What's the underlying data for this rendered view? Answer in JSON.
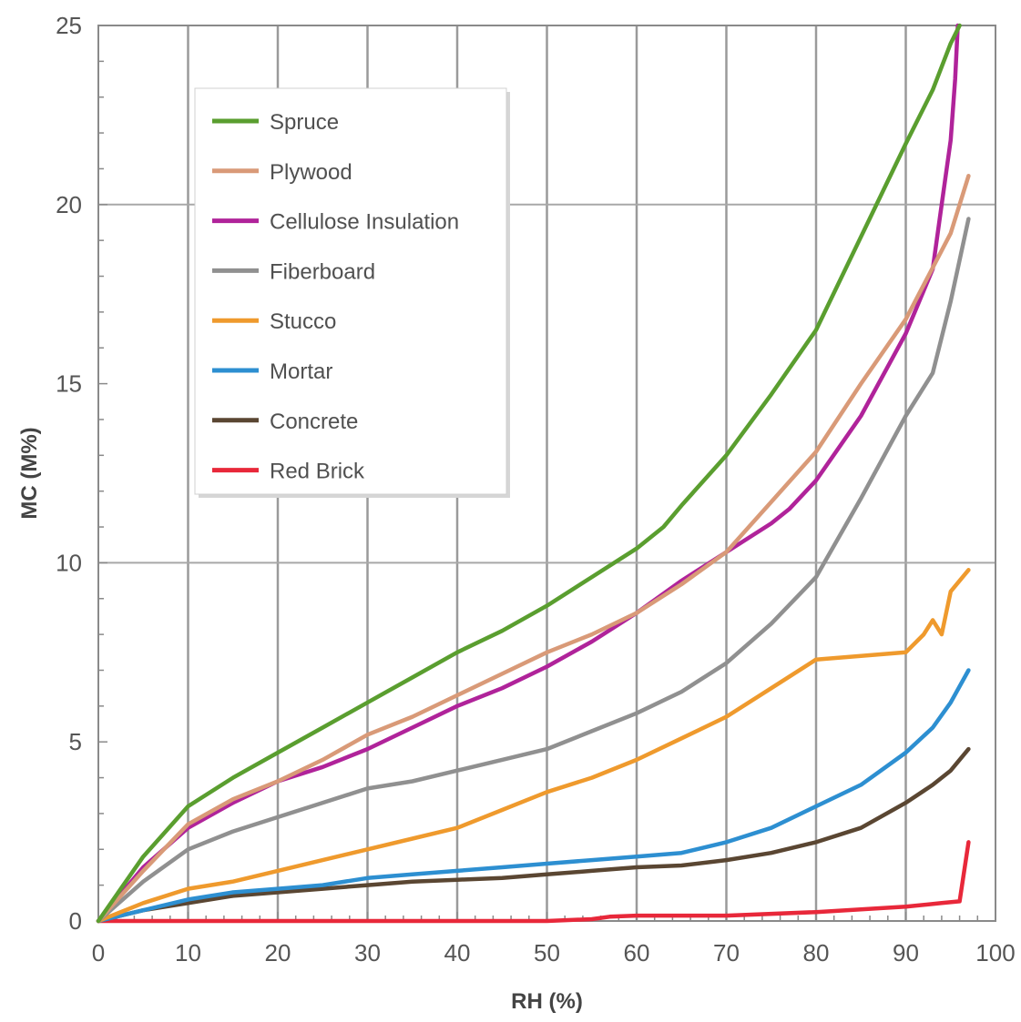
{
  "chart_data": {
    "type": "line",
    "xlabel": "RH (%)",
    "ylabel": "MC (M%)",
    "xlim": [
      0,
      100
    ],
    "ylim": [
      0,
      25
    ],
    "x_ticks": [
      0,
      10,
      20,
      30,
      40,
      50,
      60,
      70,
      80,
      90,
      100
    ],
    "y_ticks": [
      0,
      5,
      10,
      15,
      20,
      25
    ],
    "major_gridlines_y": [
      10,
      20
    ],
    "vertical_grid_x": [
      10,
      20,
      30,
      40,
      50,
      60,
      70,
      80,
      90
    ],
    "grid": true,
    "legend_position": "top-left",
    "series": [
      {
        "name": "Spruce",
        "color": "#5a9e2f",
        "points": [
          [
            0,
            0
          ],
          [
            5,
            1.8
          ],
          [
            10,
            3.2
          ],
          [
            15,
            4.0
          ],
          [
            20,
            4.7
          ],
          [
            25,
            5.4
          ],
          [
            30,
            6.1
          ],
          [
            35,
            6.8
          ],
          [
            40,
            7.5
          ],
          [
            45,
            8.1
          ],
          [
            50,
            8.8
          ],
          [
            55,
            9.6
          ],
          [
            60,
            10.4
          ],
          [
            63,
            11.0
          ],
          [
            65,
            11.6
          ],
          [
            70,
            13.0
          ],
          [
            75,
            14.7
          ],
          [
            80,
            16.5
          ],
          [
            85,
            19.1
          ],
          [
            90,
            21.7
          ],
          [
            93,
            23.2
          ],
          [
            95,
            24.5
          ],
          [
            96,
            25.0
          ]
        ]
      },
      {
        "name": "Plywood",
        "color": "#d99a78",
        "points": [
          [
            0,
            0
          ],
          [
            5,
            1.4
          ],
          [
            10,
            2.7
          ],
          [
            15,
            3.4
          ],
          [
            20,
            3.9
          ],
          [
            25,
            4.5
          ],
          [
            30,
            5.2
          ],
          [
            35,
            5.7
          ],
          [
            40,
            6.3
          ],
          [
            45,
            6.9
          ],
          [
            50,
            7.5
          ],
          [
            55,
            8.0
          ],
          [
            60,
            8.6
          ],
          [
            65,
            9.4
          ],
          [
            70,
            10.3
          ],
          [
            75,
            11.7
          ],
          [
            80,
            13.1
          ],
          [
            85,
            15.0
          ],
          [
            90,
            16.8
          ],
          [
            95,
            19.2
          ],
          [
            97,
            20.8
          ]
        ]
      },
      {
        "name": "Cellulose Insulation",
        "color": "#b0239a",
        "points": [
          [
            0,
            0
          ],
          [
            5,
            1.5
          ],
          [
            10,
            2.6
          ],
          [
            15,
            3.3
          ],
          [
            20,
            3.9
          ],
          [
            25,
            4.3
          ],
          [
            30,
            4.8
          ],
          [
            35,
            5.4
          ],
          [
            40,
            6.0
          ],
          [
            45,
            6.5
          ],
          [
            50,
            7.1
          ],
          [
            55,
            7.8
          ],
          [
            60,
            8.6
          ],
          [
            65,
            9.5
          ],
          [
            70,
            10.3
          ],
          [
            75,
            11.1
          ],
          [
            77,
            11.5
          ],
          [
            80,
            12.3
          ],
          [
            85,
            14.1
          ],
          [
            90,
            16.4
          ],
          [
            93,
            18.2
          ],
          [
            94,
            20.0
          ],
          [
            95,
            21.8
          ],
          [
            95.5,
            23.5
          ],
          [
            95.8,
            25.0
          ]
        ]
      },
      {
        "name": "Fiberboard",
        "color": "#909090",
        "points": [
          [
            0,
            0
          ],
          [
            5,
            1.1
          ],
          [
            10,
            2.0
          ],
          [
            15,
            2.5
          ],
          [
            20,
            2.9
          ],
          [
            25,
            3.3
          ],
          [
            30,
            3.7
          ],
          [
            35,
            3.9
          ],
          [
            40,
            4.2
          ],
          [
            45,
            4.5
          ],
          [
            50,
            4.8
          ],
          [
            55,
            5.3
          ],
          [
            60,
            5.8
          ],
          [
            65,
            6.4
          ],
          [
            70,
            7.2
          ],
          [
            75,
            8.3
          ],
          [
            80,
            9.6
          ],
          [
            85,
            11.8
          ],
          [
            90,
            14.1
          ],
          [
            93,
            15.3
          ],
          [
            95,
            17.3
          ],
          [
            97,
            19.6
          ]
        ]
      },
      {
        "name": "Stucco",
        "color": "#ef9a2d",
        "points": [
          [
            0,
            0
          ],
          [
            5,
            0.5
          ],
          [
            10,
            0.9
          ],
          [
            15,
            1.1
          ],
          [
            20,
            1.4
          ],
          [
            25,
            1.7
          ],
          [
            30,
            2.0
          ],
          [
            35,
            2.3
          ],
          [
            40,
            2.6
          ],
          [
            45,
            3.1
          ],
          [
            50,
            3.6
          ],
          [
            55,
            4.0
          ],
          [
            60,
            4.5
          ],
          [
            65,
            5.1
          ],
          [
            70,
            5.7
          ],
          [
            75,
            6.5
          ],
          [
            80,
            7.3
          ],
          [
            85,
            7.4
          ],
          [
            90,
            7.5
          ],
          [
            92,
            8.0
          ],
          [
            93,
            8.4
          ],
          [
            94,
            8.0
          ],
          [
            95,
            9.2
          ],
          [
            97,
            9.8
          ]
        ]
      },
      {
        "name": "Mortar",
        "color": "#2d8fd1",
        "points": [
          [
            0,
            0
          ],
          [
            5,
            0.3
          ],
          [
            10,
            0.6
          ],
          [
            15,
            0.8
          ],
          [
            20,
            0.9
          ],
          [
            25,
            1.0
          ],
          [
            30,
            1.2
          ],
          [
            35,
            1.3
          ],
          [
            40,
            1.4
          ],
          [
            45,
            1.5
          ],
          [
            50,
            1.6
          ],
          [
            55,
            1.7
          ],
          [
            60,
            1.8
          ],
          [
            65,
            1.9
          ],
          [
            70,
            2.2
          ],
          [
            75,
            2.6
          ],
          [
            80,
            3.2
          ],
          [
            85,
            3.8
          ],
          [
            90,
            4.7
          ],
          [
            93,
            5.4
          ],
          [
            95,
            6.1
          ],
          [
            97,
            7.0
          ]
        ]
      },
      {
        "name": "Concrete",
        "color": "#5a4632",
        "points": [
          [
            0,
            0
          ],
          [
            5,
            0.3
          ],
          [
            10,
            0.5
          ],
          [
            15,
            0.7
          ],
          [
            20,
            0.8
          ],
          [
            25,
            0.9
          ],
          [
            30,
            1.0
          ],
          [
            35,
            1.1
          ],
          [
            40,
            1.15
          ],
          [
            45,
            1.2
          ],
          [
            50,
            1.3
          ],
          [
            55,
            1.4
          ],
          [
            60,
            1.5
          ],
          [
            65,
            1.55
          ],
          [
            70,
            1.7
          ],
          [
            75,
            1.9
          ],
          [
            80,
            2.2
          ],
          [
            85,
            2.6
          ],
          [
            90,
            3.3
          ],
          [
            93,
            3.8
          ],
          [
            95,
            4.2
          ],
          [
            97,
            4.8
          ]
        ]
      },
      {
        "name": "Red Brick",
        "color": "#e8283a",
        "points": [
          [
            0,
            0
          ],
          [
            10,
            0
          ],
          [
            20,
            0
          ],
          [
            30,
            0
          ],
          [
            40,
            0
          ],
          [
            50,
            0
          ],
          [
            55,
            0.05
          ],
          [
            57,
            0.12
          ],
          [
            60,
            0.15
          ],
          [
            70,
            0.15
          ],
          [
            80,
            0.25
          ],
          [
            90,
            0.4
          ],
          [
            94,
            0.5
          ],
          [
            96,
            0.55
          ],
          [
            97,
            2.2
          ]
        ]
      }
    ]
  }
}
